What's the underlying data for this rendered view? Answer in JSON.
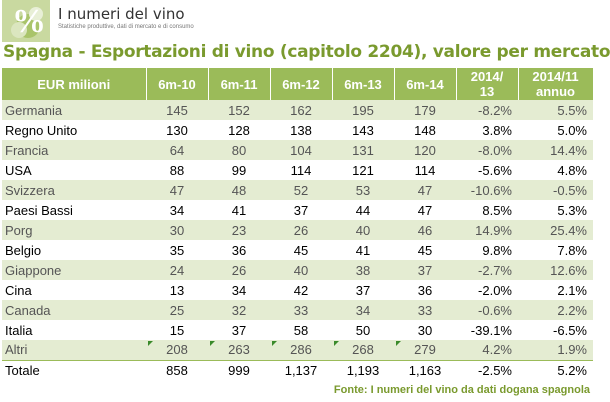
{
  "logo": {
    "title": "I numeri del vino",
    "subtitle": "Statistiche produttive, dati di mercato e di consumo"
  },
  "title": "Spagna - Esportazioni di vino (capitolo 2204), valore per mercato",
  "table": {
    "headers": [
      "EUR milioni",
      "6m-10",
      "6m-11",
      "6m-12",
      "6m-13",
      "6m-14",
      "2014/\n13",
      "2014/11\nannuo"
    ],
    "rows": [
      [
        "Germania",
        "145",
        "152",
        "162",
        "195",
        "179",
        "-8.2%",
        "5.5%"
      ],
      [
        "Regno Unito",
        "130",
        "128",
        "138",
        "143",
        "148",
        "3.8%",
        "5.0%"
      ],
      [
        "Francia",
        "64",
        "80",
        "104",
        "131",
        "120",
        "-8.0%",
        "14.4%"
      ],
      [
        "USA",
        "88",
        "99",
        "114",
        "121",
        "114",
        "-5.6%",
        "4.8%"
      ],
      [
        "Svizzera",
        "47",
        "48",
        "52",
        "53",
        "47",
        "-10.6%",
        "-0.5%"
      ],
      [
        "Paesi Bassi",
        "34",
        "41",
        "37",
        "44",
        "47",
        "8.5%",
        "5.3%"
      ],
      [
        "Porg",
        "30",
        "23",
        "26",
        "40",
        "46",
        "14.9%",
        "25.4%"
      ],
      [
        "Belgio",
        "35",
        "36",
        "45",
        "41",
        "45",
        "9.8%",
        "7.8%"
      ],
      [
        "Giappone",
        "24",
        "26",
        "40",
        "38",
        "37",
        "-2.7%",
        "12.6%"
      ],
      [
        "Cina",
        "13",
        "34",
        "42",
        "37",
        "36",
        "-2.0%",
        "2.1%"
      ],
      [
        "Canada",
        "25",
        "32",
        "33",
        "34",
        "33",
        "-0.6%",
        "2.2%"
      ],
      [
        "Italia",
        "15",
        "37",
        "58",
        "50",
        "30",
        "-39.1%",
        "-6.5%"
      ],
      [
        "Altri",
        "208",
        "263",
        "286",
        "268",
        "279",
        "4.2%",
        "1.9%"
      ],
      [
        "Totale",
        "858",
        "999",
        "1,137",
        "1,193",
        "1,163",
        "-2.5%",
        "5.2%"
      ]
    ]
  },
  "source": "Fonte: I numeri del vino da dati dogana spagnola",
  "colors": {
    "accent": "#9bbb59",
    "title": "#7a9a2e",
    "stripe": "#e4ecd2"
  }
}
